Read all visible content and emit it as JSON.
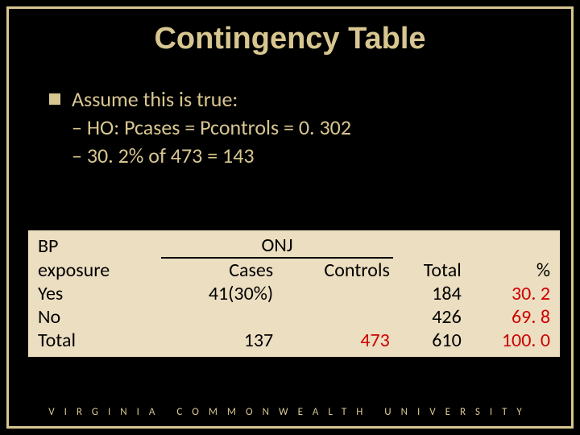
{
  "title": "Contingency Table",
  "bullets": {
    "main": "Assume this is true:",
    "sub1": "– HO: Pcases = Pcontrols = 0. 302",
    "sub2": "– 30. 2% of 473 = 143"
  },
  "table": {
    "header": {
      "col1a": "BP",
      "col1b": "exposure",
      "onj": "ONJ",
      "cases": "Cases",
      "controls": "Controls",
      "total": "Total",
      "pct": "%"
    },
    "rows": {
      "yes": {
        "label": "Yes",
        "cases": "41(30%)",
        "total": "184",
        "pct": "30. 2"
      },
      "no": {
        "label": "No",
        "total": "426",
        "pct": "69. 8"
      },
      "tot": {
        "label": "Total",
        "cases": "137",
        "controls": "473",
        "total": "610",
        "pct": "100. 0"
      }
    },
    "colors": {
      "background": "#ecdec0",
      "text": "#000000",
      "highlight": "#cc0000"
    }
  },
  "footer": "VIRGINIA COMMONWEALTH UNIVERSITY",
  "colors": {
    "slide_bg": "#000000",
    "frame": "#d8c690",
    "body_text": "#d8c690"
  }
}
